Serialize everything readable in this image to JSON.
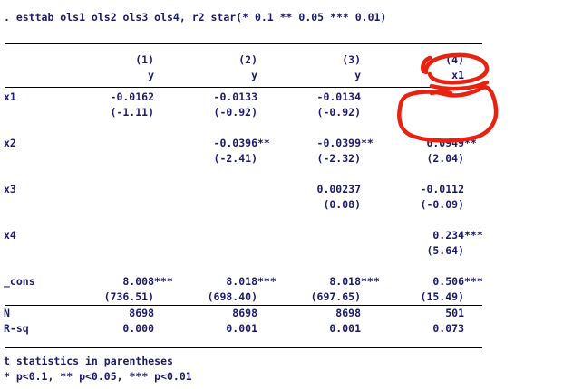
{
  "command": ". esttab ols1 ols2 ols3 ols4, r2 star(* 0.1 ** 0.05 *** 0.01)",
  "table": {
    "model_numbers": [
      "(1)",
      "(2)",
      "(3)",
      "(4)"
    ],
    "dep_vars": [
      "y",
      "y",
      "y",
      "x1"
    ],
    "coef_rows": [
      {
        "label": "x1",
        "cells": [
          {
            "est": "-0.0162",
            "stars": "",
            "t": "(-1.11)"
          },
          {
            "est": "-0.0133",
            "stars": "",
            "t": "(-0.92)"
          },
          {
            "est": "-0.0134",
            "stars": "",
            "t": "(-0.92)"
          },
          null
        ]
      },
      {
        "label": "x2",
        "cells": [
          null,
          {
            "est": "-0.0396",
            "stars": "**",
            "t": "(-2.41)"
          },
          {
            "est": "-0.0399",
            "stars": "**",
            "t": "(-2.32)"
          },
          {
            "est": "0.0949",
            "stars": "**",
            "t": "(2.04)"
          }
        ]
      },
      {
        "label": "x3",
        "cells": [
          null,
          null,
          {
            "est": "0.00237",
            "stars": "",
            "t": "(0.08)"
          },
          {
            "est": "-0.0112",
            "stars": "",
            "t": "(-0.09)"
          }
        ]
      },
      {
        "label": "x4",
        "cells": [
          null,
          null,
          null,
          {
            "est": "0.234",
            "stars": "***",
            "t": "(5.64)"
          }
        ]
      },
      {
        "label": "_cons",
        "cells": [
          {
            "est": "8.008",
            "stars": "***",
            "t": "(736.51)"
          },
          {
            "est": "8.018",
            "stars": "***",
            "t": "(698.40)"
          },
          {
            "est": "8.018",
            "stars": "***",
            "t": "(697.65)"
          },
          {
            "est": "0.506",
            "stars": "***",
            "t": "(15.49)"
          }
        ]
      }
    ],
    "stat_rows": [
      {
        "label": "N",
        "values": [
          "8698",
          "8698",
          "8698",
          "501"
        ]
      },
      {
        "label": "R-sq",
        "values": [
          "0.000",
          "0.001",
          "0.001",
          "0.073"
        ]
      }
    ]
  },
  "footnotes": [
    "t statistics in parentheses",
    "* p<0.1, ** p<0.05, *** p<0.01"
  ],
  "colors": {
    "text": "#1b1b6b",
    "background": "#ffffff",
    "rule": "#000000",
    "annotation": "#e8220e"
  },
  "annotations": [
    "red-circle-around-col4-dep-var",
    "red-circle-around-col4-empty-x1-cell"
  ]
}
